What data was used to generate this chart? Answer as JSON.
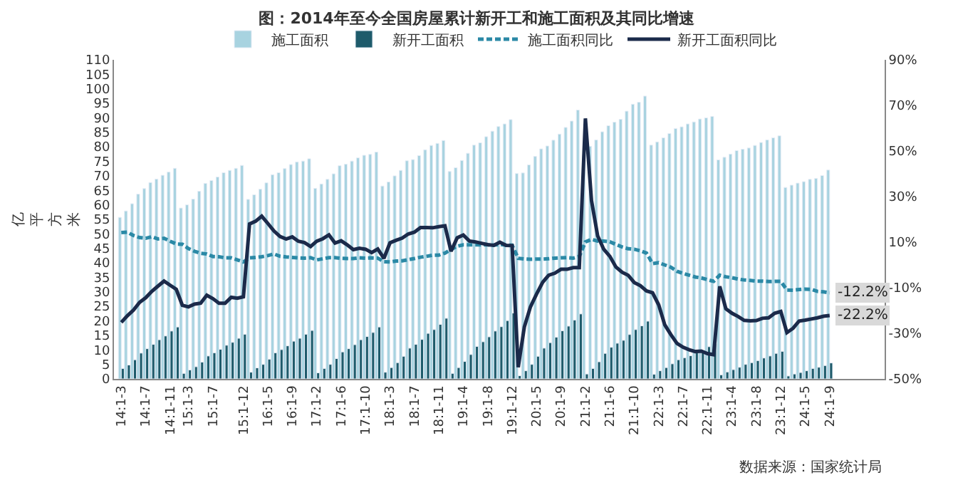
{
  "chart_data": {
    "type": "bar",
    "title": "图：2014年至今全国房屋累计新开工和施工面积及其同比增速",
    "ylabel": "亿平方米",
    "categories": [
      "14:1-3",
      null,
      null,
      null,
      "14:1-7",
      null,
      null,
      null,
      "14:1-11",
      null,
      null,
      "15:1-3",
      null,
      null,
      null,
      "15:1-7",
      null,
      null,
      null,
      null,
      "15:1-12",
      null,
      null,
      null,
      "16:1-5",
      null,
      null,
      null,
      "16:1-9",
      null,
      null,
      null,
      "17:1-2",
      null,
      null,
      null,
      "17:1-6",
      null,
      null,
      null,
      "17:1-10",
      null,
      null,
      null,
      "18:1-3",
      null,
      null,
      null,
      "18:1-7",
      null,
      null,
      null,
      "18:1-11",
      null,
      null,
      null,
      "19:1-4",
      null,
      null,
      null,
      "19:1-8",
      null,
      null,
      null,
      "19:1-12",
      null,
      null,
      null,
      "20:1-5",
      null,
      null,
      null,
      "20:1-9",
      null,
      null,
      null,
      "21:1-2",
      null,
      null,
      null,
      "21:1-6",
      null,
      null,
      null,
      "21:1-10",
      null,
      null,
      null,
      "22:1-3",
      null,
      null,
      null,
      "22:1-7",
      null,
      null,
      null,
      "22:1-11",
      null,
      null,
      null,
      "23:1-4",
      null,
      null,
      null,
      "23:1-8",
      null,
      null,
      null,
      "23:1-12",
      null,
      null,
      null,
      "24:1-5",
      null,
      null,
      null,
      "24:1-9"
    ],
    "series": [
      {
        "name": "施工面积",
        "color": "#a8d3e0",
        "values": [
          55.7,
          57.9,
          60.4,
          63.7,
          65.6,
          67.7,
          68.9,
          70.2,
          71.3,
          72.6,
          58.9,
          60.0,
          62.0,
          64.7,
          67.4,
          68.4,
          69.6,
          71.1,
          71.9,
          72.6,
          73.6,
          61.9,
          63.5,
          65.4,
          67.6,
          70.4,
          71.1,
          72.5,
          73.9,
          74.8,
          75.1,
          75.9,
          65.7,
          67.2,
          68.8,
          70.7,
          73.5,
          74.0,
          75.1,
          76.2,
          77.1,
          77.4,
          78.2,
          66.5,
          67.9,
          70.0,
          71.9,
          75.2,
          75.6,
          77.0,
          79.0,
          80.5,
          81.2,
          82.2,
          71.5,
          72.8,
          75.3,
          77.8,
          80.6,
          81.4,
          83.5,
          85.4,
          87.0,
          87.9,
          89.4,
          70.8,
          71.0,
          73.8,
          76.7,
          79.3,
          80.3,
          82.3,
          84.4,
          86.7,
          88.9,
          92.7,
          77.3,
          80.2,
          82.4,
          85.2,
          87.3,
          88.5,
          89.5,
          92.3,
          94.7,
          95.4,
          97.5,
          80.6,
          81.7,
          83.1,
          84.6,
          86.3,
          86.9,
          87.9,
          88.6,
          89.6,
          90.0,
          90.5,
          75.5,
          76.4,
          77.5,
          78.7,
          79.2,
          79.6,
          80.5,
          81.5,
          82.4,
          83.1,
          83.8,
          66.0,
          66.8,
          67.5,
          68.0,
          68.8,
          69.1,
          70.1,
          72.0
        ]
      },
      {
        "name": "新开工面积",
        "color": "#1e5b6b",
        "values": [
          3.6,
          4.8,
          6.6,
          8.9,
          10.4,
          11.9,
          13.5,
          14.8,
          16.5,
          17.9,
          1.9,
          3.1,
          4.2,
          5.8,
          7.9,
          9.0,
          10.2,
          11.6,
          12.6,
          14.0,
          15.4,
          2.3,
          3.8,
          5.0,
          6.8,
          9.0,
          10.1,
          11.4,
          13.0,
          14.0,
          15.4,
          16.7,
          2.1,
          3.6,
          5.0,
          7.0,
          9.3,
          10.4,
          11.8,
          13.5,
          14.6,
          16.0,
          17.9,
          2.3,
          3.9,
          5.6,
          7.8,
          10.6,
          11.9,
          13.6,
          15.7,
          17.0,
          18.8,
          20.9,
          1.9,
          3.9,
          6.0,
          8.4,
          11.2,
          12.8,
          14.5,
          16.5,
          18.0,
          20.1,
          22.7,
          1.1,
          2.8,
          5.0,
          7.8,
          10.6,
          12.5,
          14.4,
          16.6,
          18.2,
          20.3,
          22.4,
          1.7,
          3.6,
          5.9,
          8.8,
          10.9,
          12.3,
          13.3,
          15.3,
          17.0,
          18.3,
          19.9,
          1.6,
          2.8,
          3.9,
          5.2,
          6.6,
          7.3,
          8.0,
          9.0,
          9.7,
          11.1,
          12.1,
          1.4,
          2.4,
          3.2,
          4.0,
          5.0,
          5.6,
          6.3,
          7.2,
          7.9,
          8.8,
          9.5,
          1.0,
          1.7,
          2.2,
          2.8,
          3.6,
          4.0,
          4.6,
          5.5
        ]
      },
      {
        "name": "施工面积同比",
        "type": "line",
        "axis": "y2",
        "line_style": "dashed",
        "color": "#2b89a6",
        "values": [
          14.2,
          14.4,
          12.9,
          12.0,
          11.7,
          12.4,
          11.4,
          11.7,
          10.4,
          9.2,
          9.1,
          7.2,
          6.0,
          5.1,
          4.8,
          3.7,
          3.6,
          3.1,
          3.1,
          2.2,
          1.3,
          3.1,
          3.3,
          3.6,
          4.1,
          4.8,
          3.8,
          3.5,
          3.3,
          3.1,
          3.0,
          3.2,
          2.2,
          2.7,
          3.2,
          3.2,
          2.9,
          2.8,
          2.8,
          3.1,
          3.0,
          3.1,
          3.0,
          1.4,
          1.3,
          1.7,
          1.8,
          2.3,
          2.8,
          3.4,
          3.8,
          4.3,
          4.3,
          5.2,
          6.8,
          8.2,
          8.8,
          8.8,
          8.8,
          8.8,
          8.8,
          8.7,
          9.0,
          8.7,
          8.7,
          2.9,
          2.6,
          2.5,
          2.6,
          2.6,
          2.7,
          3.0,
          3.1,
          3.2,
          3.0,
          3.7,
          10.1,
          11.2,
          10.5,
          10.5,
          10.2,
          9.0,
          7.9,
          7.1,
          6.9,
          6.2,
          5.2,
          0.6,
          1.0,
          0.0,
          -1.0,
          -2.8,
          -3.7,
          -4.5,
          -5.3,
          -5.7,
          -6.5,
          -7.2,
          -4.5,
          -5.2,
          -5.6,
          -6.2,
          -6.6,
          -6.8,
          -7.1,
          -7.1,
          -7.3,
          -7.2,
          -7.2,
          -11.0,
          -11.1,
          -10.8,
          -10.6,
          -10.7,
          -11.6,
          -11.8,
          -12.2
        ],
        "value_labels": [
          null,
          null,
          null,
          null,
          null,
          null,
          null,
          null,
          null,
          null,
          null,
          null,
          null,
          null,
          null,
          null,
          null,
          null,
          null,
          null,
          null,
          null,
          null,
          null,
          null,
          null,
          null,
          null,
          null,
          null,
          null,
          null,
          null,
          null,
          null,
          null,
          null,
          null,
          null,
          null,
          null,
          null,
          null,
          null,
          null,
          null,
          null,
          null,
          null,
          null,
          null,
          null,
          null,
          null,
          null,
          null,
          null,
          null,
          null,
          null,
          null,
          null,
          null,
          null,
          null,
          null,
          null,
          null,
          null,
          null,
          null,
          null,
          null,
          null,
          null,
          null,
          null,
          null,
          null,
          null,
          null,
          null,
          null,
          null,
          null,
          null,
          null,
          null,
          null,
          null,
          null,
          null,
          null,
          null,
          null,
          null,
          null,
          null,
          null,
          null,
          null,
          null,
          null,
          null,
          null,
          null,
          null,
          null,
          null,
          null,
          null,
          null,
          null,
          null,
          null,
          null,
          "-12.2%"
        ]
      },
      {
        "name": "新开工面积同比",
        "type": "line",
        "axis": "y2",
        "line_style": "solid",
        "color": "#1b2a4a",
        "values": [
          -25.2,
          -22.3,
          -19.8,
          -16.4,
          -14.4,
          -11.6,
          -9.3,
          -7.1,
          -8.9,
          -10.7,
          -17.7,
          -18.4,
          -17.2,
          -16.8,
          -13.3,
          -14.8,
          -16.8,
          -16.8,
          -14.2,
          -14.6,
          -14.0,
          18.0,
          19.2,
          21.4,
          18.2,
          14.9,
          12.5,
          11.4,
          12.3,
          10.4,
          9.8,
          8.1,
          10.4,
          11.5,
          13.2,
          9.6,
          10.6,
          8.8,
          6.7,
          7.3,
          6.9,
          5.4,
          7.0,
          2.9,
          9.7,
          10.8,
          11.8,
          13.6,
          14.4,
          16.4,
          16.4,
          16.3,
          16.8,
          17.2,
          6.0,
          11.9,
          13.1,
          10.5,
          10.1,
          9.5,
          8.9,
          8.6,
          10.0,
          8.6,
          8.5,
          -44.9,
          -27.2,
          -18.4,
          -12.8,
          -7.6,
          -4.5,
          -3.6,
          -1.9,
          -1.9,
          -1.2,
          -1.2,
          64.3,
          28.2,
          12.8,
          6.9,
          3.8,
          -0.9,
          -3.2,
          -4.5,
          -7.7,
          -9.1,
          -11.4,
          -12.2,
          -17.5,
          -26.3,
          -30.6,
          -34.4,
          -36.1,
          -37.2,
          -38.0,
          -37.8,
          -38.9,
          -39.4,
          -9.4,
          -19.2,
          -21.2,
          -22.6,
          -24.3,
          -24.5,
          -24.4,
          -23.4,
          -23.2,
          -21.2,
          -20.4,
          -29.7,
          -27.8,
          -24.6,
          -24.2,
          -23.7,
          -23.2,
          -22.5,
          -22.2
        ],
        "value_labels": [
          null,
          null,
          null,
          null,
          null,
          null,
          null,
          null,
          null,
          null,
          null,
          null,
          null,
          null,
          null,
          null,
          null,
          null,
          null,
          null,
          null,
          null,
          null,
          null,
          null,
          null,
          null,
          null,
          null,
          null,
          null,
          null,
          null,
          null,
          null,
          null,
          null,
          null,
          null,
          null,
          null,
          null,
          null,
          null,
          null,
          null,
          null,
          null,
          null,
          null,
          null,
          null,
          null,
          null,
          null,
          null,
          null,
          null,
          null,
          null,
          null,
          null,
          null,
          null,
          null,
          null,
          null,
          null,
          null,
          null,
          null,
          null,
          null,
          null,
          null,
          null,
          null,
          null,
          null,
          null,
          null,
          null,
          null,
          null,
          null,
          null,
          null,
          null,
          null,
          null,
          null,
          null,
          null,
          null,
          null,
          null,
          null,
          null,
          null,
          null,
          null,
          null,
          null,
          null,
          null,
          null,
          null,
          null,
          null,
          null,
          null,
          null,
          null,
          null,
          null,
          null,
          "-22.2%"
        ]
      }
    ],
    "ylim": [
      0,
      110
    ],
    "yticks": [
      0,
      5,
      10,
      15,
      20,
      25,
      30,
      35,
      40,
      45,
      50,
      55,
      60,
      65,
      70,
      75,
      80,
      85,
      90,
      95,
      100,
      105,
      110
    ],
    "y2lim": [
      -50,
      90
    ],
    "y2ticks": [
      {
        "value": -50,
        "label": "-50%"
      },
      {
        "value": -30,
        "label": "-30%"
      },
      {
        "value": -10,
        "label": "-10%"
      },
      {
        "value": 10,
        "label": "10%"
      },
      {
        "value": 30,
        "label": "30%"
      },
      {
        "value": 50,
        "label": "50%"
      },
      {
        "value": 70,
        "label": "70%"
      },
      {
        "value": 90,
        "label": "90%"
      }
    ],
    "legend": "top",
    "annotations": [
      "数据来源：国家统计局"
    ]
  }
}
